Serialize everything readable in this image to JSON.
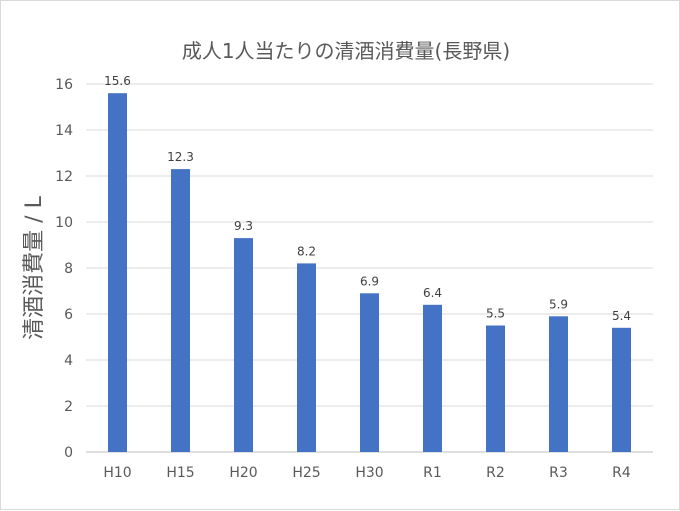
{
  "chart_data": {
    "type": "bar",
    "title": "成人1人当たりの清酒消費量(長野県)",
    "xlabel": "",
    "ylabel": "清酒消費量 / L",
    "categories": [
      "H10",
      "H15",
      "H20",
      "H25",
      "H30",
      "R1",
      "R2",
      "R3",
      "R4"
    ],
    "values": [
      15.6,
      12.3,
      9.3,
      8.2,
      6.9,
      6.4,
      5.5,
      5.9,
      5.4
    ],
    "data_labels": [
      "15.6",
      "12.3",
      "9.3",
      "8.2",
      "6.9",
      "6.4",
      "5.5",
      "5.9",
      "5.4"
    ],
    "yticks": [
      0,
      2,
      4,
      6,
      8,
      10,
      12,
      14,
      16
    ],
    "ylim": [
      0,
      16
    ],
    "grid": true,
    "legend": "none",
    "colors": {
      "bar": "#4472C4",
      "text": "#595959",
      "grid": "#D9D9D9"
    }
  }
}
